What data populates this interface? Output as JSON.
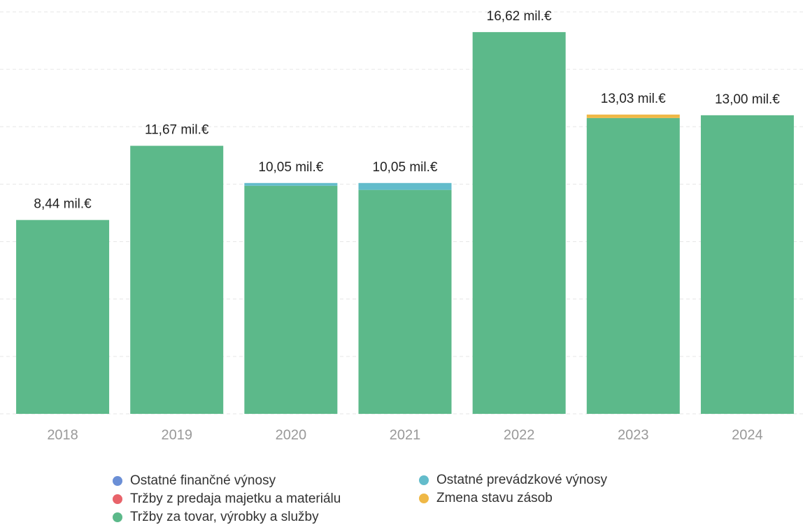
{
  "chart_data": {
    "type": "stacked_bar",
    "categories": [
      "2018",
      "2019",
      "2020",
      "2021",
      "2022",
      "2023",
      "2024"
    ],
    "series": [
      {
        "name": "Tržby za tovar, výrobky a služby",
        "color": "#5cb98a",
        "values": [
          8.44,
          11.67,
          9.93,
          9.75,
          16.62,
          12.88,
          13.0
        ]
      },
      {
        "name": "Ostatné prevádzkové výnosy",
        "color": "#63bccb",
        "values": [
          0,
          0,
          0.12,
          0.3,
          0,
          0,
          0
        ]
      },
      {
        "name": "Zmena stavu zásob",
        "color": "#efb846",
        "values": [
          0,
          0,
          0,
          0,
          0,
          0.15,
          0
        ]
      },
      {
        "name": "Tržby z predaja majetku a materiálu",
        "color": "#e8636a",
        "values": [
          0,
          0,
          0,
          0,
          0,
          0,
          0
        ]
      },
      {
        "name": "Ostatné finančné výnosy",
        "color": "#6b8fd6",
        "values": [
          0,
          0,
          0,
          0,
          0,
          0,
          0
        ]
      }
    ],
    "totals": {
      "values": [
        8.44,
        11.67,
        10.05,
        10.05,
        16.62,
        13.03,
        13.0
      ],
      "value_labels": [
        "8,44 mil.€",
        "11,67 mil.€",
        "10,05 mil.€",
        "10,05 mil.€",
        "16,62 mil.€",
        "13,03 mil.€",
        "13,00 mil.€"
      ]
    },
    "ylim": [
      0,
      17.5
    ],
    "yticks": [
      0,
      2.5,
      5,
      7.5,
      10,
      12.5,
      15,
      17.5
    ],
    "grid": true
  }
}
